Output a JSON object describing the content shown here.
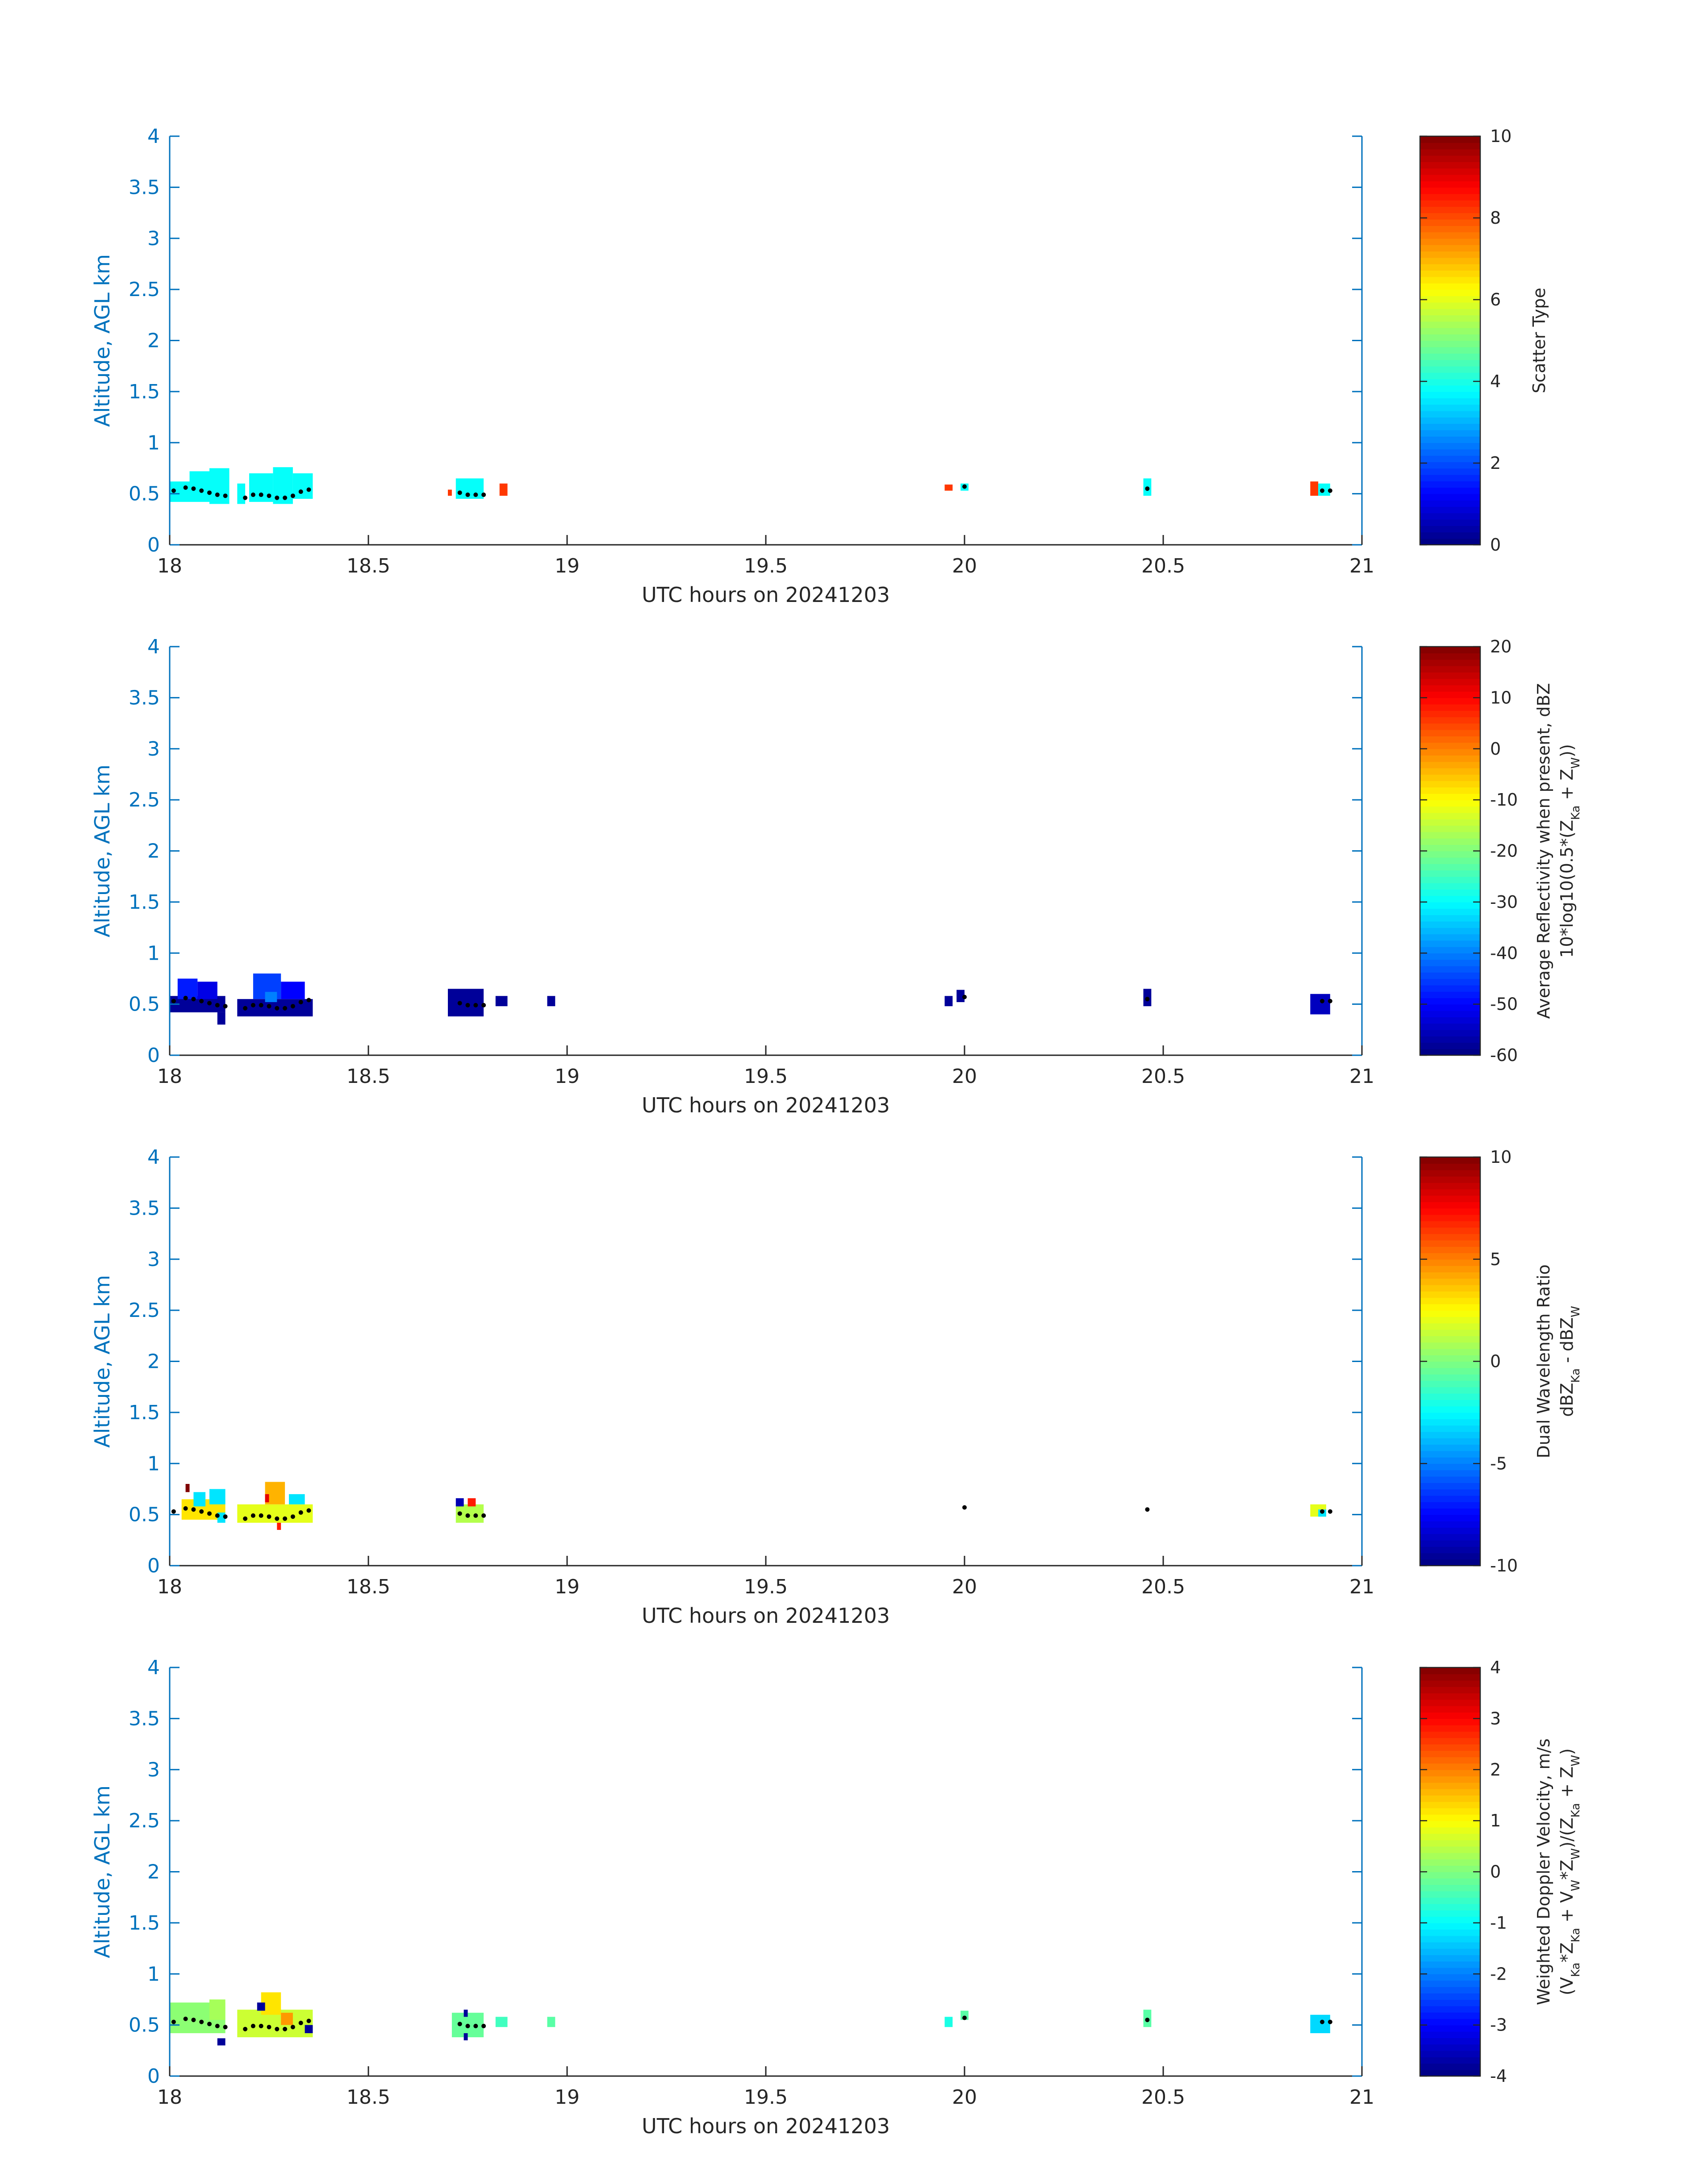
{
  "chart_data": [
    {
      "type": "heatmap",
      "title": "",
      "xlabel": "UTC hours on 20241203",
      "ylabel": "Altitude, AGL km",
      "xlim": [
        18,
        21
      ],
      "ylim": [
        0,
        4
      ],
      "xticks": [
        "18",
        "18.5",
        "19",
        "19.5",
        "20",
        "20.5",
        "21"
      ],
      "yticks": [
        "0",
        "0.5",
        "1",
        "1.5",
        "2",
        "2.5",
        "3",
        "3.5",
        "4"
      ],
      "colorbar": {
        "label_lines": [
          "Scatter Type"
        ],
        "range": [
          0,
          10
        ],
        "ticks": [
          "0",
          "2",
          "4",
          "6",
          "8",
          "10"
        ]
      },
      "cells": [
        {
          "x0": 18.0,
          "x1": 18.05,
          "y0": 0.42,
          "y1": 0.62,
          "v": 3.8
        },
        {
          "x0": 18.05,
          "x1": 18.1,
          "y0": 0.42,
          "y1": 0.72,
          "v": 3.8
        },
        {
          "x0": 18.1,
          "x1": 18.15,
          "y0": 0.4,
          "y1": 0.75,
          "v": 3.8
        },
        {
          "x0": 18.17,
          "x1": 18.19,
          "y0": 0.4,
          "y1": 0.6,
          "v": 3.8
        },
        {
          "x0": 18.2,
          "x1": 18.26,
          "y0": 0.42,
          "y1": 0.7,
          "v": 3.8
        },
        {
          "x0": 18.26,
          "x1": 18.31,
          "y0": 0.4,
          "y1": 0.76,
          "v": 3.8
        },
        {
          "x0": 18.31,
          "x1": 18.36,
          "y0": 0.45,
          "y1": 0.7,
          "v": 3.8
        },
        {
          "x0": 18.7,
          "x1": 18.71,
          "y0": 0.48,
          "y1": 0.54,
          "v": 8.2
        },
        {
          "x0": 18.72,
          "x1": 18.79,
          "y0": 0.45,
          "y1": 0.65,
          "v": 3.8
        },
        {
          "x0": 18.83,
          "x1": 18.85,
          "y0": 0.48,
          "y1": 0.6,
          "v": 8.2
        },
        {
          "x0": 19.95,
          "x1": 19.97,
          "y0": 0.53,
          "y1": 0.59,
          "v": 8.2
        },
        {
          "x0": 19.99,
          "x1": 20.01,
          "y0": 0.53,
          "y1": 0.6,
          "v": 3.8
        },
        {
          "x0": 20.45,
          "x1": 20.47,
          "y0": 0.48,
          "y1": 0.65,
          "v": 3.8
        },
        {
          "x0": 20.87,
          "x1": 20.89,
          "y0": 0.48,
          "y1": 0.62,
          "v": 8.2
        },
        {
          "x0": 20.89,
          "x1": 20.92,
          "y0": 0.48,
          "y1": 0.6,
          "v": 3.8
        }
      ],
      "cloud_base_points": [
        {
          "x": 18.01,
          "y": 0.53
        },
        {
          "x": 18.04,
          "y": 0.56
        },
        {
          "x": 18.06,
          "y": 0.55
        },
        {
          "x": 18.08,
          "y": 0.53
        },
        {
          "x": 18.1,
          "y": 0.51
        },
        {
          "x": 18.12,
          "y": 0.49
        },
        {
          "x": 18.14,
          "y": 0.48
        },
        {
          "x": 18.19,
          "y": 0.46
        },
        {
          "x": 18.21,
          "y": 0.49
        },
        {
          "x": 18.23,
          "y": 0.49
        },
        {
          "x": 18.25,
          "y": 0.48
        },
        {
          "x": 18.27,
          "y": 0.46
        },
        {
          "x": 18.29,
          "y": 0.46
        },
        {
          "x": 18.31,
          "y": 0.48
        },
        {
          "x": 18.33,
          "y": 0.52
        },
        {
          "x": 18.35,
          "y": 0.54
        },
        {
          "x": 18.73,
          "y": 0.51
        },
        {
          "x": 18.75,
          "y": 0.49
        },
        {
          "x": 18.77,
          "y": 0.49
        },
        {
          "x": 18.79,
          "y": 0.49
        },
        {
          "x": 20.0,
          "y": 0.57
        },
        {
          "x": 20.46,
          "y": 0.55
        },
        {
          "x": 20.9,
          "y": 0.53
        },
        {
          "x": 20.92,
          "y": 0.53
        }
      ]
    },
    {
      "type": "heatmap",
      "title": "",
      "xlabel": "UTC hours on 20241203",
      "ylabel": "Altitude, AGL km",
      "xlim": [
        18,
        21
      ],
      "ylim": [
        0,
        4
      ],
      "xticks": [
        "18",
        "18.5",
        "19",
        "19.5",
        "20",
        "20.5",
        "21"
      ],
      "yticks": [
        "0",
        "0.5",
        "1",
        "1.5",
        "2",
        "2.5",
        "3",
        "3.5",
        "4"
      ],
      "colorbar": {
        "label_lines": [
          "Average Reflectivity when present, dBZ",
          "10*log10(0.5*(Z{Ka} + Z{W}))"
        ],
        "range": [
          -60,
          20
        ],
        "ticks": [
          "-60",
          "-50",
          "-40",
          "-30",
          "-20",
          "-10",
          "0",
          "10",
          "20"
        ]
      },
      "cells": [
        {
          "x0": 18.0,
          "x1": 18.14,
          "y0": 0.42,
          "y1": 0.58,
          "v": -58
        },
        {
          "x0": 18.02,
          "x1": 18.07,
          "y0": 0.55,
          "y1": 0.75,
          "v": -48
        },
        {
          "x0": 18.07,
          "x1": 18.12,
          "y0": 0.55,
          "y1": 0.72,
          "v": -52
        },
        {
          "x0": 18.12,
          "x1": 18.14,
          "y0": 0.3,
          "y1": 0.42,
          "v": -58
        },
        {
          "x0": 18.17,
          "x1": 18.36,
          "y0": 0.38,
          "y1": 0.55,
          "v": -58
        },
        {
          "x0": 18.21,
          "x1": 18.28,
          "y0": 0.55,
          "y1": 0.8,
          "v": -45
        },
        {
          "x0": 18.28,
          "x1": 18.34,
          "y0": 0.55,
          "y1": 0.72,
          "v": -50
        },
        {
          "x0": 18.24,
          "x1": 18.27,
          "y0": 0.52,
          "y1": 0.62,
          "v": -40
        },
        {
          "x0": 18.7,
          "x1": 18.79,
          "y0": 0.38,
          "y1": 0.65,
          "v": -58
        },
        {
          "x0": 18.82,
          "x1": 18.85,
          "y0": 0.48,
          "y1": 0.58,
          "v": -58
        },
        {
          "x0": 18.95,
          "x1": 18.97,
          "y0": 0.48,
          "y1": 0.58,
          "v": -58
        },
        {
          "x0": 19.95,
          "x1": 19.97,
          "y0": 0.48,
          "y1": 0.58,
          "v": -58
        },
        {
          "x0": 19.98,
          "x1": 20.0,
          "y0": 0.52,
          "y1": 0.64,
          "v": -58
        },
        {
          "x0": 20.45,
          "x1": 20.47,
          "y0": 0.48,
          "y1": 0.65,
          "v": -58
        },
        {
          "x0": 20.87,
          "x1": 20.92,
          "y0": 0.4,
          "y1": 0.6,
          "v": -55
        }
      ],
      "cloud_base_points": [
        {
          "x": 18.01,
          "y": 0.53
        },
        {
          "x": 18.04,
          "y": 0.56
        },
        {
          "x": 18.06,
          "y": 0.55
        },
        {
          "x": 18.08,
          "y": 0.53
        },
        {
          "x": 18.1,
          "y": 0.51
        },
        {
          "x": 18.12,
          "y": 0.49
        },
        {
          "x": 18.14,
          "y": 0.48
        },
        {
          "x": 18.19,
          "y": 0.46
        },
        {
          "x": 18.21,
          "y": 0.49
        },
        {
          "x": 18.23,
          "y": 0.49
        },
        {
          "x": 18.25,
          "y": 0.48
        },
        {
          "x": 18.27,
          "y": 0.46
        },
        {
          "x": 18.29,
          "y": 0.46
        },
        {
          "x": 18.31,
          "y": 0.48
        },
        {
          "x": 18.33,
          "y": 0.52
        },
        {
          "x": 18.35,
          "y": 0.54
        },
        {
          "x": 18.73,
          "y": 0.51
        },
        {
          "x": 18.75,
          "y": 0.49
        },
        {
          "x": 18.77,
          "y": 0.49
        },
        {
          "x": 18.79,
          "y": 0.49
        },
        {
          "x": 20.0,
          "y": 0.57
        },
        {
          "x": 20.46,
          "y": 0.55
        },
        {
          "x": 20.9,
          "y": 0.53
        },
        {
          "x": 20.92,
          "y": 0.53
        }
      ]
    },
    {
      "type": "heatmap",
      "title": "",
      "xlabel": "UTC hours on 20241203",
      "ylabel": "Altitude, AGL km",
      "xlim": [
        18,
        21
      ],
      "ylim": [
        0,
        4
      ],
      "xticks": [
        "18",
        "18.5",
        "19",
        "19.5",
        "20",
        "20.5",
        "21"
      ],
      "yticks": [
        "0",
        "0.5",
        "1",
        "1.5",
        "2",
        "2.5",
        "3",
        "3.5",
        "4"
      ],
      "colorbar": {
        "label_lines": [
          "Dual Wavelength Ratio",
          "dBZ{Ka} - dBZ{W}"
        ],
        "range": [
          -10,
          10
        ],
        "ticks": [
          "-10",
          "-5",
          "0",
          "5",
          "10"
        ]
      },
      "cells": [
        {
          "x0": 18.03,
          "x1": 18.14,
          "y0": 0.45,
          "y1": 0.65,
          "v": 3
        },
        {
          "x0": 18.04,
          "x1": 18.05,
          "y0": 0.72,
          "y1": 0.8,
          "v": 10
        },
        {
          "x0": 18.06,
          "x1": 18.09,
          "y0": 0.58,
          "y1": 0.72,
          "v": -3
        },
        {
          "x0": 18.1,
          "x1": 18.14,
          "y0": 0.6,
          "y1": 0.75,
          "v": -3
        },
        {
          "x0": 18.12,
          "x1": 18.14,
          "y0": 0.42,
          "y1": 0.52,
          "v": -3
        },
        {
          "x0": 18.17,
          "x1": 18.36,
          "y0": 0.42,
          "y1": 0.6,
          "v": 2
        },
        {
          "x0": 18.24,
          "x1": 18.29,
          "y0": 0.6,
          "y1": 0.82,
          "v": 4
        },
        {
          "x0": 18.24,
          "x1": 18.25,
          "y0": 0.62,
          "y1": 0.7,
          "v": 8
        },
        {
          "x0": 18.27,
          "x1": 18.28,
          "y0": 0.35,
          "y1": 0.42,
          "v": 7
        },
        {
          "x0": 18.3,
          "x1": 18.34,
          "y0": 0.6,
          "y1": 0.7,
          "v": -3
        },
        {
          "x0": 18.72,
          "x1": 18.79,
          "y0": 0.42,
          "y1": 0.6,
          "v": 1
        },
        {
          "x0": 18.72,
          "x1": 18.74,
          "y0": 0.58,
          "y1": 0.66,
          "v": -9
        },
        {
          "x0": 18.75,
          "x1": 18.77,
          "y0": 0.58,
          "y1": 0.66,
          "v": 7
        },
        {
          "x0": 20.87,
          "x1": 20.91,
          "y0": 0.48,
          "y1": 0.6,
          "v": 2
        },
        {
          "x0": 20.89,
          "x1": 20.91,
          "y0": 0.48,
          "y1": 0.55,
          "v": -3
        }
      ],
      "cloud_base_points": [
        {
          "x": 18.01,
          "y": 0.53
        },
        {
          "x": 18.04,
          "y": 0.56
        },
        {
          "x": 18.06,
          "y": 0.55
        },
        {
          "x": 18.08,
          "y": 0.53
        },
        {
          "x": 18.1,
          "y": 0.51
        },
        {
          "x": 18.12,
          "y": 0.49
        },
        {
          "x": 18.14,
          "y": 0.48
        },
        {
          "x": 18.19,
          "y": 0.46
        },
        {
          "x": 18.21,
          "y": 0.49
        },
        {
          "x": 18.23,
          "y": 0.49
        },
        {
          "x": 18.25,
          "y": 0.48
        },
        {
          "x": 18.27,
          "y": 0.46
        },
        {
          "x": 18.29,
          "y": 0.46
        },
        {
          "x": 18.31,
          "y": 0.48
        },
        {
          "x": 18.33,
          "y": 0.52
        },
        {
          "x": 18.35,
          "y": 0.54
        },
        {
          "x": 18.73,
          "y": 0.51
        },
        {
          "x": 18.75,
          "y": 0.49
        },
        {
          "x": 18.77,
          "y": 0.49
        },
        {
          "x": 18.79,
          "y": 0.49
        },
        {
          "x": 20.0,
          "y": 0.57
        },
        {
          "x": 20.46,
          "y": 0.55
        },
        {
          "x": 20.9,
          "y": 0.53
        },
        {
          "x": 20.92,
          "y": 0.53
        }
      ]
    },
    {
      "type": "heatmap",
      "title": "",
      "xlabel": "UTC hours on 20241203",
      "ylabel": "Altitude, AGL km",
      "xlim": [
        18,
        21
      ],
      "ylim": [
        0,
        4
      ],
      "xticks": [
        "18",
        "18.5",
        "19",
        "19.5",
        "20",
        "20.5",
        "21"
      ],
      "yticks": [
        "0",
        "0.5",
        "1",
        "1.5",
        "2",
        "2.5",
        "3",
        "3.5",
        "4"
      ],
      "colorbar": {
        "label_lines": [
          "Weighted Doppler Velocity, m/s",
          "(V{Ka}*Z{Ka} + V{W}*Z{W})/(Z{Ka} + Z{W})"
        ],
        "range": [
          -4,
          4
        ],
        "ticks": [
          "-4",
          "-3",
          "-2",
          "-1",
          "0",
          "1",
          "2",
          "3",
          "4"
        ]
      },
      "cells": [
        {
          "x0": 18.0,
          "x1": 18.14,
          "y0": 0.42,
          "y1": 0.72,
          "v": 0.1
        },
        {
          "x0": 18.1,
          "x1": 18.14,
          "y0": 0.55,
          "y1": 0.75,
          "v": 0.3
        },
        {
          "x0": 18.12,
          "x1": 18.14,
          "y0": 0.3,
          "y1": 0.37,
          "v": -3.8
        },
        {
          "x0": 18.17,
          "x1": 18.36,
          "y0": 0.38,
          "y1": 0.65,
          "v": 0.6
        },
        {
          "x0": 18.23,
          "x1": 18.28,
          "y0": 0.6,
          "y1": 0.82,
          "v": 1.2
        },
        {
          "x0": 18.22,
          "x1": 18.24,
          "y0": 0.64,
          "y1": 0.72,
          "v": -3.8
        },
        {
          "x0": 18.28,
          "x1": 18.31,
          "y0": 0.5,
          "y1": 0.62,
          "v": 1.8
        },
        {
          "x0": 18.34,
          "x1": 18.36,
          "y0": 0.42,
          "y1": 0.5,
          "v": -3.8
        },
        {
          "x0": 18.71,
          "x1": 18.79,
          "y0": 0.38,
          "y1": 0.62,
          "v": -0.2
        },
        {
          "x0": 18.74,
          "x1": 18.75,
          "y0": 0.58,
          "y1": 0.65,
          "v": -3.8
        },
        {
          "x0": 18.74,
          "x1": 18.75,
          "y0": 0.35,
          "y1": 0.42,
          "v": -3.8
        },
        {
          "x0": 18.82,
          "x1": 18.85,
          "y0": 0.48,
          "y1": 0.58,
          "v": -0.5
        },
        {
          "x0": 18.95,
          "x1": 18.97,
          "y0": 0.48,
          "y1": 0.58,
          "v": -0.3
        },
        {
          "x0": 19.95,
          "x1": 19.97,
          "y0": 0.48,
          "y1": 0.58,
          "v": -0.8
        },
        {
          "x0": 19.99,
          "x1": 20.01,
          "y0": 0.55,
          "y1": 0.64,
          "v": -0.3
        },
        {
          "x0": 20.45,
          "x1": 20.47,
          "y0": 0.48,
          "y1": 0.65,
          "v": -0.3
        },
        {
          "x0": 20.87,
          "x1": 20.92,
          "y0": 0.42,
          "y1": 0.6,
          "v": -1.3
        }
      ],
      "cloud_base_points": [
        {
          "x": 18.01,
          "y": 0.53
        },
        {
          "x": 18.04,
          "y": 0.56
        },
        {
          "x": 18.06,
          "y": 0.55
        },
        {
          "x": 18.08,
          "y": 0.53
        },
        {
          "x": 18.1,
          "y": 0.51
        },
        {
          "x": 18.12,
          "y": 0.49
        },
        {
          "x": 18.14,
          "y": 0.48
        },
        {
          "x": 18.19,
          "y": 0.46
        },
        {
          "x": 18.21,
          "y": 0.49
        },
        {
          "x": 18.23,
          "y": 0.49
        },
        {
          "x": 18.25,
          "y": 0.48
        },
        {
          "x": 18.27,
          "y": 0.46
        },
        {
          "x": 18.29,
          "y": 0.46
        },
        {
          "x": 18.31,
          "y": 0.48
        },
        {
          "x": 18.33,
          "y": 0.52
        },
        {
          "x": 18.35,
          "y": 0.54
        },
        {
          "x": 18.73,
          "y": 0.51
        },
        {
          "x": 18.75,
          "y": 0.49
        },
        {
          "x": 18.77,
          "y": 0.49
        },
        {
          "x": 18.79,
          "y": 0.49
        },
        {
          "x": 20.0,
          "y": 0.57
        },
        {
          "x": 20.46,
          "y": 0.55
        },
        {
          "x": 20.9,
          "y": 0.53
        },
        {
          "x": 20.92,
          "y": 0.53
        }
      ]
    }
  ]
}
